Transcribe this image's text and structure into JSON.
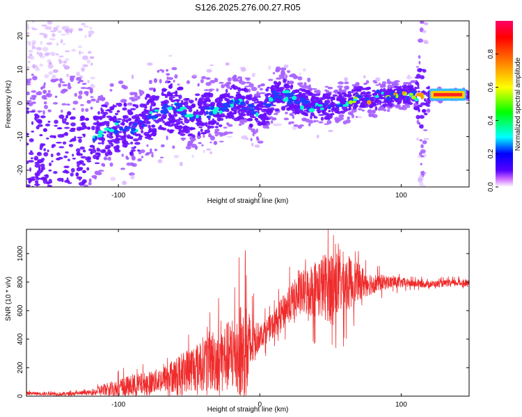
{
  "figure_title": "S126.2025.276.00.27.R05",
  "chart_data": [
    {
      "type": "heatmap",
      "title": "S126.2025.276.00.27.R05",
      "xlabel": "Height of straight line (km)",
      "ylabel": "Frequency (Hz)",
      "xlim": [
        -165,
        148
      ],
      "ylim": [
        -25,
        24.5
      ],
      "x_ticks": [
        -100,
        0,
        100
      ],
      "y_ticks": [
        -20,
        -10,
        0,
        10,
        20
      ],
      "colorbar": {
        "label": "Normalized spectral amplitude",
        "range": [
          0.0,
          1.0
        ],
        "ticks": [
          "0.0",
          "0.2",
          "0.4",
          "0.6",
          "0.8"
        ],
        "tick_values": [
          0.0,
          0.2,
          0.4,
          0.6,
          0.8
        ],
        "colors": [
          "#ffffff",
          "#cc66ff",
          "#5500ff",
          "#0000ff",
          "#00ffff",
          "#00ff00",
          "#ffff00",
          "#ff8000",
          "#ff0000",
          "#ff0066"
        ]
      },
      "ridge": {
        "x": [
          -165,
          -150,
          -130,
          -118,
          -110,
          -100,
          -90,
          -80,
          -70,
          -60,
          -50,
          -40,
          -30,
          -20,
          -10,
          -5,
          0,
          5,
          10,
          15,
          20,
          30,
          40,
          50,
          60,
          70,
          80,
          90,
          100,
          110,
          115,
          120,
          130,
          140,
          148
        ],
        "freq": [
          -15,
          -18,
          -16,
          -12,
          -8,
          -7,
          -8,
          -5,
          -2,
          -1,
          -4,
          -3,
          -2,
          0,
          0,
          -3,
          -3,
          -1,
          2,
          3,
          2,
          0,
          -1,
          -1,
          0,
          2,
          1,
          2,
          2.5,
          2.5,
          2,
          2.5,
          2.5,
          2.5,
          2.5
        ]
      },
      "noise_spread_hz": [
        22,
        22,
        22,
        14,
        12,
        12,
        12,
        12,
        13,
        12,
        10,
        10,
        9,
        8,
        8,
        8,
        8,
        8,
        7,
        7,
        7,
        7,
        6,
        6,
        5,
        5,
        5,
        4,
        4,
        4,
        22,
        1.5,
        1.5,
        1.5,
        1.5
      ]
    },
    {
      "type": "line",
      "xlabel": "Height of straight line (km)",
      "ylabel": "SNR (10 * v/v)",
      "xlim": [
        -165,
        148
      ],
      "ylim": [
        0,
        1170
      ],
      "x_ticks": [
        -100,
        0,
        100
      ],
      "y_ticks": [
        0,
        200,
        400,
        600,
        800,
        1000
      ],
      "color": "#ef2b2b",
      "series": [
        {
          "name": "SNR",
          "x": [
            -165,
            -140,
            -120,
            -110,
            -100,
            -90,
            -80,
            -70,
            -60,
            -50,
            -40,
            -30,
            -20,
            -15,
            -10,
            -5,
            0,
            10,
            20,
            30,
            40,
            50,
            60,
            70,
            80,
            90,
            100,
            110,
            120,
            130,
            140,
            148
          ],
          "values": [
            20,
            15,
            25,
            45,
            60,
            70,
            90,
            115,
            145,
            190,
            230,
            260,
            280,
            330,
            260,
            380,
            420,
            500,
            640,
            720,
            760,
            780,
            790,
            800,
            790,
            800,
            795,
            790,
            785,
            790,
            795,
            790
          ],
          "envelope": [
            15,
            15,
            20,
            60,
            80,
            100,
            100,
            110,
            150,
            200,
            240,
            300,
            320,
            420,
            480,
            230,
            100,
            120,
            160,
            200,
            260,
            330,
            280,
            160,
            90,
            60,
            45,
            35,
            30,
            30,
            30,
            30
          ]
        }
      ]
    }
  ]
}
